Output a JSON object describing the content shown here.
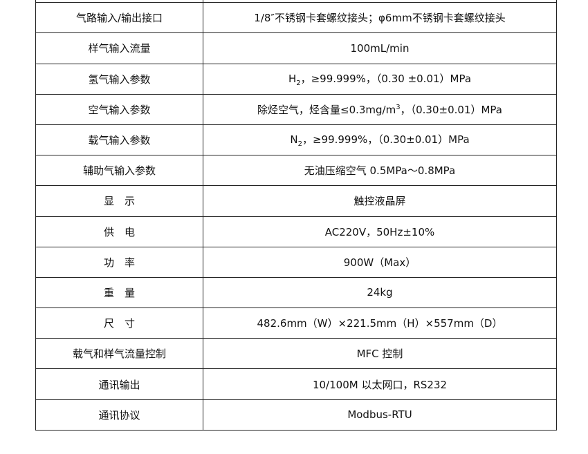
{
  "rows": [
    {
      "label": "",
      "value": ""
    },
    {
      "label": "气路输入/输出接口",
      "value": "1/8″不锈钢卡套螺纹接头；φ6mm不锈钢卡套螺纹接头"
    },
    {
      "label": "样气输入流量",
      "value": "100mL/min"
    },
    {
      "label": "氢气输入参数",
      "pre": "H",
      "sub": "2",
      "post": "，≥99.999%，（0.30  ±0.01）MPa"
    },
    {
      "label": "空气输入参数",
      "pre": "除烃空气，烃含量≤0.3mg/m",
      "sup": "3",
      "post": "，（0.30±0.01）MPa"
    },
    {
      "label": "载气输入参数",
      "pre": "N",
      "sub": "2",
      "post": "，≥99.999%，（0.30±0.01）MPa"
    },
    {
      "label": "辅助气输入参数",
      "value": "无油压缩空气 0.5MPa～0.8MPa"
    },
    {
      "label": "显　示",
      "value": "触控液晶屏"
    },
    {
      "label": "供　电",
      "value": "AC220V，50Hz±10%"
    },
    {
      "label": "功　率",
      "value": "900W（Max）"
    },
    {
      "label": "重　量",
      "value": "24kg"
    },
    {
      "label": "尺　寸",
      "value": "482.6mm（W）×221.5mm（H）×557mm（D）"
    },
    {
      "label": "载气和样气流量控制",
      "value": "MFC 控制"
    },
    {
      "label": "通讯输出",
      "value": "10/100M 以太网口，RS232"
    },
    {
      "label": "通讯协议",
      "value": "Modbus-RTU"
    }
  ]
}
